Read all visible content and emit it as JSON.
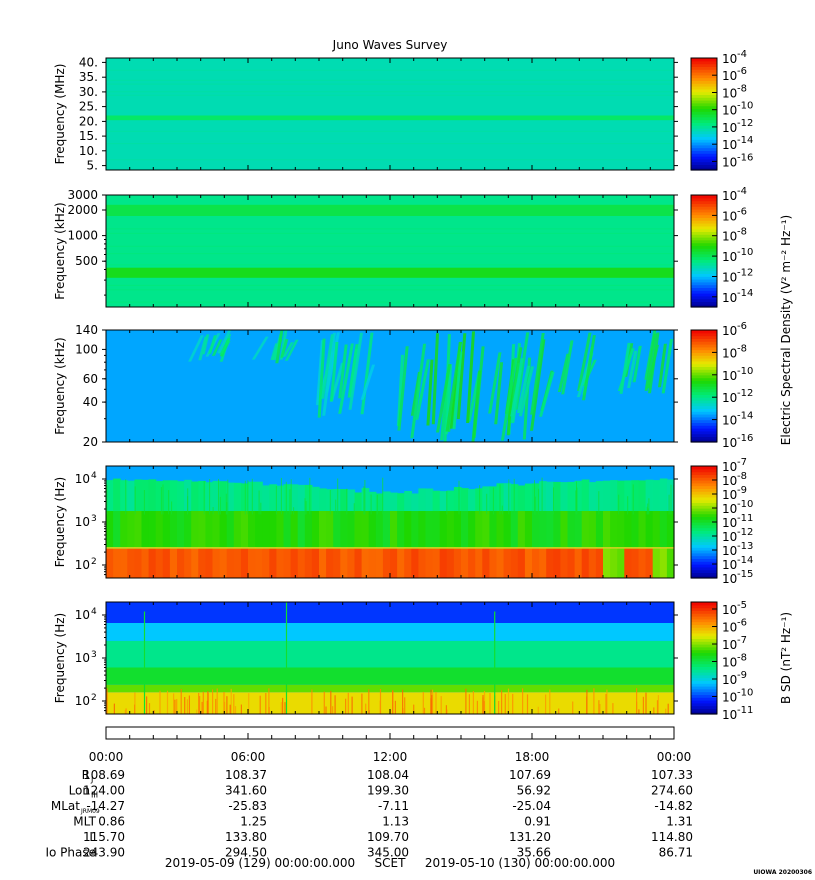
{
  "title": "Juno Waves Survey",
  "credit": "UIOWA 20200306",
  "colors": {
    "frame": "#000000"
  },
  "chart_data": [
    {
      "type": "heatmap",
      "panel": 1,
      "ylabel": "Frequency (MHz)",
      "yscale": "linear",
      "ylim": [
        3.5,
        41.5
      ],
      "yticks": [
        {
          "v": 5,
          "label": "5."
        },
        {
          "v": 10,
          "label": "10."
        },
        {
          "v": 15,
          "label": "15."
        },
        {
          "v": 20,
          "label": "20."
        },
        {
          "v": 25,
          "label": "25."
        },
        {
          "v": 30,
          "label": "30."
        },
        {
          "v": 35,
          "label": "35."
        },
        {
          "v": 40,
          "label": "40."
        }
      ],
      "colorbar": {
        "min_exp": -17,
        "max_exp": -4,
        "ticks": [
          "-4",
          "-6",
          "-8",
          "-10",
          "-12",
          "-14",
          "-16"
        ]
      },
      "pattern": "uniform",
      "bands": [
        {
          "v0": 3.5,
          "v1": 41.5,
          "level": 0.36
        },
        {
          "v0": 20.4,
          "v1": 22.0,
          "level": 0.44
        }
      ]
    },
    {
      "type": "heatmap",
      "panel": 2,
      "ylabel": "Frequency (kHz)",
      "yscale": "log",
      "ylim": [
        145,
        3000
      ],
      "yticks": [
        {
          "v": 500,
          "label": "500"
        },
        {
          "v": 1000,
          "label": "1000"
        },
        {
          "v": 2000,
          "label": "2000"
        },
        {
          "v": 3000,
          "label": "3000"
        }
      ],
      "colorbar": {
        "min_exp": -15,
        "max_exp": -4,
        "ticks": [
          "-4",
          "-6",
          "-8",
          "-10",
          "-12",
          "-14"
        ],
        "label": "Electric Spectral Density (V² m⁻² Hz⁻¹)"
      },
      "pattern": "uniform",
      "bands": [
        {
          "v0": 145,
          "v1": 3000,
          "level": 0.4
        },
        {
          "v0": 1700,
          "v1": 2300,
          "level": 0.47
        },
        {
          "v0": 320,
          "v1": 420,
          "level": 0.52
        }
      ]
    },
    {
      "type": "heatmap",
      "panel": 3,
      "ylabel": "Frequency (kHz)",
      "yscale": "log",
      "ylim": [
        20,
        140
      ],
      "yticks": [
        {
          "v": 20,
          "label": "20"
        },
        {
          "v": 40,
          "label": "40"
        },
        {
          "v": 60,
          "label": "60"
        },
        {
          "v": 100,
          "label": "100"
        },
        {
          "v": 140,
          "label": "140"
        }
      ],
      "colorbar": {
        "min_exp": -16,
        "max_exp": -6,
        "ticks": [
          "-6",
          "-8",
          "-10",
          "-12",
          "-14",
          "-16"
        ]
      },
      "pattern": "radio_bursts",
      "bands": [
        {
          "v0": 20,
          "v1": 140,
          "level": 0.25
        }
      ],
      "bursts": [
        {
          "t0": 3.4,
          "t1": 5.2,
          "f0": 80,
          "f1": 140,
          "level": 0.32
        },
        {
          "t0": 6.0,
          "t1": 7.6,
          "f0": 75,
          "f1": 140,
          "level": 0.33
        },
        {
          "t0": 8.5,
          "t1": 11.0,
          "f0": 30,
          "f1": 140,
          "level": 0.3
        },
        {
          "t0": 12.2,
          "t1": 17.3,
          "f0": 20,
          "f1": 140,
          "level": 0.4
        },
        {
          "t0": 17.0,
          "t1": 18.6,
          "f0": 20,
          "f1": 140,
          "level": 0.37
        },
        {
          "t0": 19.0,
          "t1": 20.2,
          "f0": 38,
          "f1": 140,
          "level": 0.35
        },
        {
          "t0": 21.6,
          "t1": 23.5,
          "f0": 45,
          "f1": 140,
          "level": 0.36
        }
      ]
    },
    {
      "type": "heatmap",
      "panel": 4,
      "ylabel": "Frequency (Hz)",
      "yscale": "log",
      "ylim": [
        50,
        20000
      ],
      "yticks": [
        {
          "v": 100,
          "label": "10",
          "exp": "2"
        },
        {
          "v": 1000,
          "label": "10",
          "exp": "3"
        },
        {
          "v": 10000,
          "label": "10",
          "exp": "4"
        }
      ],
      "colorbar": {
        "min_exp": -15,
        "max_exp": -7,
        "ticks": [
          "-7",
          "-8",
          "-9",
          "-10",
          "-11",
          "-12",
          "-13",
          "-14",
          "-15"
        ]
      },
      "pattern": "low_freq_e",
      "bands": [
        {
          "v0": 50,
          "v1": 20000,
          "level": 0.25
        }
      ]
    },
    {
      "type": "heatmap",
      "panel": 5,
      "ylabel": "Frequency (Hz)",
      "yscale": "log",
      "ylim": [
        50,
        20000
      ],
      "yticks": [
        {
          "v": 100,
          "label": "10",
          "exp": "2"
        },
        {
          "v": 1000,
          "label": "10",
          "exp": "3"
        },
        {
          "v": 10000,
          "label": "10",
          "exp": "4"
        }
      ],
      "colorbar": {
        "min_exp": -11,
        "max_exp": -4.6,
        "ticks": [
          "-5",
          "-6",
          "-7",
          "-8",
          "-9",
          "-10",
          "-11"
        ],
        "label": "B SD (nT² Hz⁻¹)"
      },
      "pattern": "magnetic",
      "bands": [
        {
          "v0": 50,
          "v1": 20000,
          "level": 0.25
        }
      ]
    }
  ],
  "xaxis": {
    "ticks": [
      "00:00",
      "06:00",
      "12:00",
      "18:00",
      "00:00"
    ],
    "hours": [
      0,
      6,
      12,
      18,
      24
    ],
    "start": "2019-05-09 (129) 00:00:00.000",
    "mid": "SCET",
    "end": "2019-05-10 (130) 00:00:00.000"
  },
  "ephemeris": [
    {
      "label": "R",
      "sub": "J",
      "values": [
        "108.69",
        "108.37",
        "108.04",
        "107.69",
        "107.33"
      ]
    },
    {
      "label": "Lon",
      "sub": "III",
      "values": [
        "124.00",
        "341.60",
        "199.30",
        "56.92",
        "274.60"
      ]
    },
    {
      "label": "MLat",
      "sub": "JRM09",
      "values": [
        "-14.27",
        "-25.83",
        "-7.11",
        "-25.04",
        "-14.82"
      ]
    },
    {
      "label": "MLT",
      "sub": "",
      "values": [
        "0.86",
        "1.25",
        "1.13",
        "0.91",
        "1.31"
      ]
    },
    {
      "label": "L",
      "sub": "",
      "values": [
        "115.70",
        "133.80",
        "109.70",
        "131.20",
        "114.80"
      ]
    },
    {
      "label": "Io Phase",
      "sub": "",
      "values": [
        "243.90",
        "294.50",
        "345.00",
        "35.66",
        "86.71"
      ]
    }
  ]
}
